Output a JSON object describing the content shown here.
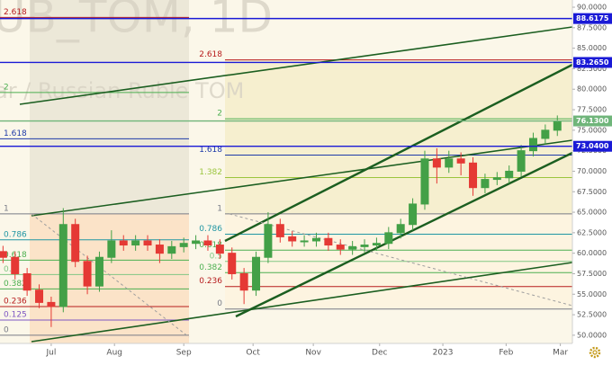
{
  "chart_data": {
    "type": "candlestick",
    "watermark": [
      "UB_TOM, 1D",
      "ar / Russian Ruble TOM"
    ],
    "x": [
      1,
      5,
      9,
      13,
      17,
      21,
      25,
      29,
      33,
      37,
      41,
      45,
      49,
      53,
      57,
      61,
      65,
      69,
      73,
      77,
      81,
      85,
      89,
      93,
      97,
      101,
      105,
      109,
      113,
      117,
      121,
      125,
      129,
      133,
      137,
      141,
      145,
      149,
      153,
      157,
      161,
      165,
      169,
      173,
      177,
      181,
      185
    ],
    "open": [
      60.2,
      59.5,
      57.5,
      55.5,
      54.0,
      53.5,
      63.5,
      59.0,
      56.0,
      59.5,
      61.5,
      61.0,
      61.5,
      61.0,
      60.0,
      60.8,
      61.2,
      61.5,
      61.0,
      60.0,
      57.5,
      55.5,
      59.5,
      63.5,
      62.0,
      61.5,
      61.5,
      61.8,
      61.0,
      60.5,
      60.8,
      61.0,
      61.2,
      62.5,
      63.5,
      66.0,
      71.5,
      70.5,
      71.5,
      71.0,
      68.0,
      69.0,
      69.2,
      70.0,
      72.5,
      74.0,
      75.0
    ],
    "high": [
      60.9,
      60.2,
      58.2,
      56.2,
      54.7,
      65.5,
      64.2,
      59.7,
      60.2,
      62.8,
      62.2,
      62.2,
      62.2,
      61.7,
      61.5,
      61.9,
      62.2,
      62.2,
      61.7,
      60.7,
      58.2,
      60.2,
      65.0,
      64.2,
      62.7,
      62.2,
      62.5,
      62.5,
      61.7,
      61.5,
      61.7,
      61.9,
      63.2,
      64.2,
      66.7,
      72.5,
      72.8,
      72.5,
      72.3,
      71.7,
      69.7,
      69.9,
      70.7,
      73.2,
      74.7,
      75.7,
      76.8
    ],
    "low": [
      58.8,
      56.8,
      54.8,
      53.3,
      51.0,
      52.8,
      58.3,
      55.0,
      55.3,
      58.8,
      60.3,
      60.3,
      60.3,
      58.8,
      59.3,
      60.1,
      60.5,
      60.3,
      59.3,
      56.8,
      53.8,
      54.8,
      58.8,
      61.3,
      60.8,
      60.8,
      60.8,
      60.3,
      59.8,
      59.8,
      60.1,
      60.3,
      60.5,
      61.8,
      62.8,
      65.3,
      68.5,
      69.8,
      69.5,
      67.0,
      67.3,
      68.3,
      68.5,
      69.3,
      71.8,
      73.3,
      74.3
    ],
    "close": [
      59.5,
      57.5,
      55.5,
      54.0,
      53.5,
      63.5,
      59.0,
      56.0,
      59.5,
      61.5,
      61.0,
      61.5,
      61.0,
      60.0,
      60.8,
      61.2,
      61.5,
      61.0,
      60.0,
      57.5,
      55.5,
      59.5,
      63.5,
      62.0,
      61.5,
      61.5,
      61.8,
      61.0,
      60.5,
      60.8,
      61.0,
      61.2,
      62.5,
      63.5,
      66.0,
      71.5,
      70.5,
      71.5,
      71.0,
      68.0,
      69.0,
      69.2,
      70.0,
      72.5,
      74.0,
      75.0,
      76.13
    ],
    "up_color": "#43a047",
    "down_color": "#e53935",
    "xlim": [
      0,
      190
    ],
    "xticks": [
      {
        "value": 17,
        "label": "Jul"
      },
      {
        "value": 38,
        "label": "Aug"
      },
      {
        "value": 61,
        "label": "Sep"
      },
      {
        "value": 84,
        "label": "Oct"
      },
      {
        "value": 104,
        "label": "Nov"
      },
      {
        "value": 126,
        "label": "Dec"
      },
      {
        "value": 147,
        "label": "2023"
      },
      {
        "value": 168,
        "label": "Feb"
      },
      {
        "value": 186,
        "label": "Mar"
      }
    ],
    "ylim": [
      49.0,
      90.88
    ],
    "yticks": [
      {
        "value": 50,
        "label": "50.0000"
      },
      {
        "value": 52.5,
        "label": "52.5000"
      },
      {
        "value": 55,
        "label": "55.0000"
      },
      {
        "value": 57.5,
        "label": "57.5000"
      },
      {
        "value": 60,
        "label": "60.0000"
      },
      {
        "value": 62.5,
        "label": "62.5000"
      },
      {
        "value": 65,
        "label": "65.0000"
      },
      {
        "value": 67.5,
        "label": "67.5000"
      },
      {
        "value": 70,
        "label": "70.0000"
      },
      {
        "value": 72.5,
        "label": "72.5000"
      },
      {
        "value": 75,
        "label": "75.0000"
      },
      {
        "value": 77.5,
        "label": "77.5000"
      },
      {
        "value": 80,
        "label": "80.0000"
      },
      {
        "value": 82.5,
        "label": "82.5000"
      },
      {
        "value": 85,
        "label": "85.0000"
      },
      {
        "value": 87.5,
        "label": "87.5000"
      },
      {
        "value": 90,
        "label": "90.0000"
      }
    ],
    "hlines": [
      {
        "value": 88.6175,
        "label": "88.6175",
        "color": "#1a1ad6"
      },
      {
        "value": 83.265,
        "label": "83.2650",
        "color": "#1a1ad6"
      },
      {
        "value": 76.13,
        "label": "76.1300",
        "color": "#6fb57a"
      },
      {
        "value": 73.04,
        "label": "73.0400",
        "color": "#1a1ad6"
      }
    ],
    "fib_sets": [
      {
        "levels": [
          {
            "ratio": 2.618,
            "price": 88.75,
            "color": "#b71c1c"
          },
          {
            "ratio": 2,
            "price": 79.6,
            "color": "#4caf50"
          },
          {
            "ratio": 1.618,
            "price": 73.95,
            "color": "#1e3aa8"
          },
          {
            "ratio": 1,
            "price": 64.8,
            "color": "#787b86"
          },
          {
            "ratio": 0.786,
            "price": 61.63,
            "color": "#2196a3"
          },
          {
            "ratio": 0.618,
            "price": 59.15,
            "color": "#4caf50"
          },
          {
            "ratio": 0.5,
            "price": 57.4,
            "color": "#81c784"
          },
          {
            "ratio": 0.382,
            "price": 55.65,
            "color": "#4caf50"
          },
          {
            "ratio": 0.236,
            "price": 53.49,
            "color": "#b71c1c"
          },
          {
            "ratio": 0.125,
            "price": 51.85,
            "color": "#7e57c2"
          },
          {
            "ratio": 0,
            "price": 50.0,
            "color": "#787b86"
          }
        ]
      },
      {
        "levels": [
          {
            "ratio": 2.618,
            "price": 83.57,
            "color": "#b71c1c"
          },
          {
            "ratio": 2,
            "price": 76.4,
            "color": "#4caf50"
          },
          {
            "ratio": 1.618,
            "price": 71.97,
            "color": "#1e3aa8"
          },
          {
            "ratio": 1.382,
            "price": 69.23,
            "color": "#9bc53d"
          },
          {
            "ratio": 1,
            "price": 64.8,
            "color": "#787b86"
          },
          {
            "ratio": 0.786,
            "price": 62.32,
            "color": "#2196a3"
          },
          {
            "ratio": 0.618,
            "price": 60.37,
            "color": "#4caf50"
          },
          {
            "ratio": 0.5,
            "price": 59.0,
            "color": "#81c784"
          },
          {
            "ratio": 0.382,
            "price": 57.63,
            "color": "#4caf50"
          },
          {
            "ratio": 0.236,
            "price": 55.94,
            "color": "#b71c1c"
          },
          {
            "ratio": 0,
            "price": 53.2,
            "color": "#787b86"
          }
        ]
      }
    ]
  }
}
